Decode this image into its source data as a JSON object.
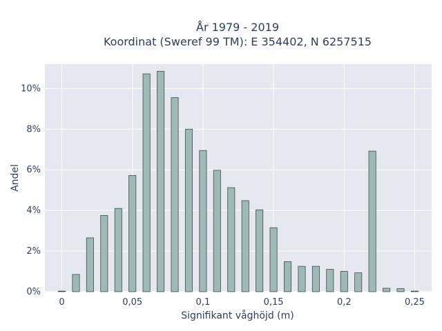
{
  "chart_data": {
    "type": "bar",
    "title_line1": "År 1979 - 2019",
    "title_line2": "Koordinat (Sweref 99 TM): E 354402, N 6257515",
    "xlabel": "Signifikant våghöjd (m)",
    "ylabel": "Andel",
    "x": [
      0,
      0.01,
      0.02,
      0.03,
      0.04,
      0.05,
      0.06,
      0.07,
      0.08,
      0.09,
      0.1,
      0.11,
      0.12,
      0.13,
      0.14,
      0.15,
      0.16,
      0.17,
      0.18,
      0.19,
      0.2,
      0.21,
      0.22,
      0.23,
      0.24,
      0.25
    ],
    "values": [
      0.03,
      0.85,
      2.65,
      3.75,
      4.1,
      5.72,
      10.72,
      10.85,
      9.55,
      8.0,
      6.95,
      5.98,
      5.12,
      4.48,
      4.03,
      3.15,
      1.48,
      1.25,
      1.25,
      1.1,
      1.0,
      0.93,
      6.92,
      0.17,
      0.15,
      0.03
    ],
    "xlim": [
      -0.012,
      0.262
    ],
    "ylim": [
      0,
      11.2
    ],
    "x_ticks": [
      0,
      0.05,
      0.1,
      0.15,
      0.2,
      0.25
    ],
    "x_tick_labels": [
      "0",
      "0,05",
      "0,1",
      "0,15",
      "0,2",
      "0,25"
    ],
    "y_ticks": [
      0,
      2,
      4,
      6,
      8,
      10
    ],
    "y_tick_labels": [
      "0%",
      "2%",
      "4%",
      "6%",
      "8%",
      "10%"
    ],
    "grid": true,
    "colors": {
      "bar_fill": "#9fb8b8",
      "bar_stroke": "#3d4b4b",
      "plot_bg": "#e5e8f0",
      "grid": "#ffffff"
    }
  }
}
